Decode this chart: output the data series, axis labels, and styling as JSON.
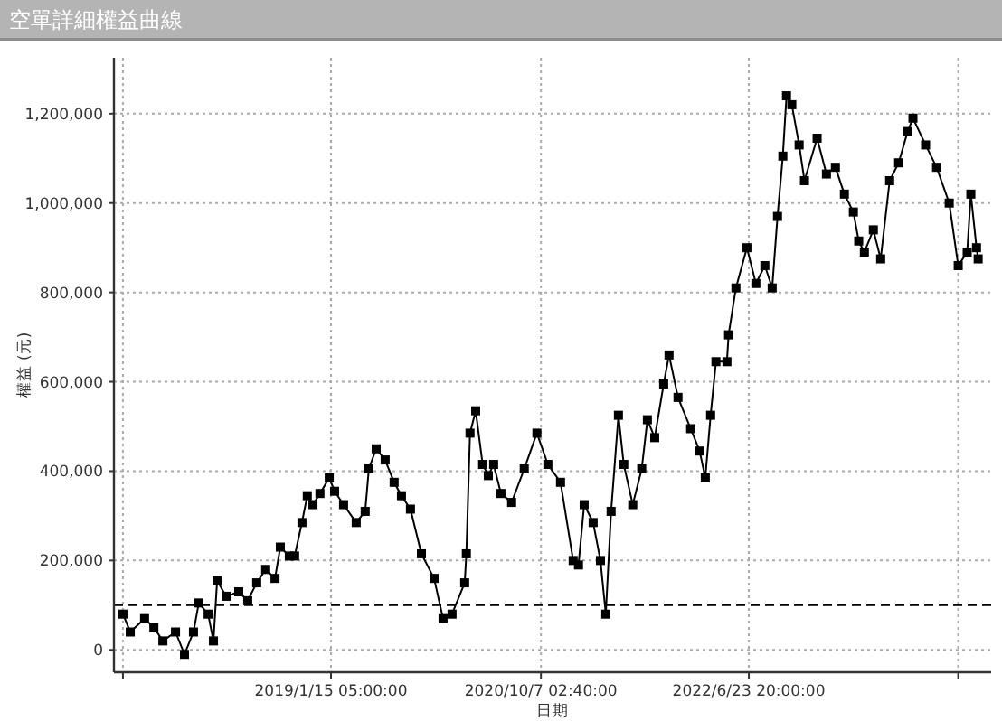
{
  "chart_data": {
    "type": "line",
    "title": "空單詳細權益曲線",
    "xlabel": "日期",
    "ylabel": "權益 (元)",
    "xlim": [
      "2017-04-03",
      "2024-06-21"
    ],
    "xticks": [
      {
        "value": "2017-04-30",
        "label": null
      },
      {
        "value": "2019-01-15T05:00",
        "label": "2019/1/15 05:00:00"
      },
      {
        "value": "2020-10-07T02:40",
        "label": "2020/10/7 02:40:00"
      },
      {
        "value": "2022-06-23T20:00",
        "label": "2022/6/23 20:00:00"
      },
      {
        "value": "2024-03-14",
        "label": null
      }
    ],
    "ylim": [
      -50000,
      1325000
    ],
    "yticks": [
      {
        "value": 0,
        "label": "0"
      },
      {
        "value": 200000,
        "label": "200,000"
      },
      {
        "value": 400000,
        "label": "400,000"
      },
      {
        "value": 600000,
        "label": "600,000"
      },
      {
        "value": 800000,
        "label": "800,000"
      },
      {
        "value": 1000000,
        "label": "1,000,000"
      },
      {
        "value": 1200000,
        "label": "1,200,000"
      }
    ],
    "grid": true,
    "marker": "square",
    "ref_lines": [
      {
        "axis": "y",
        "value": 100000,
        "color": "#000000",
        "line_style": "dashed"
      }
    ],
    "series": [
      {
        "color": "#000000",
        "x": [
          "2017-04-30",
          "2017-05-22",
          "2017-07-04",
          "2017-08-01",
          "2017-08-28",
          "2017-10-05",
          "2017-11-01",
          "2017-11-28",
          "2017-12-14",
          "2018-01-11",
          "2018-01-27",
          "2018-02-07",
          "2018-03-06",
          "2018-04-13",
          "2018-05-10",
          "2018-06-06",
          "2018-07-03",
          "2018-07-31",
          "2018-08-16",
          "2018-09-12",
          "2018-09-28",
          "2018-10-20",
          "2018-11-05",
          "2018-11-22",
          "2018-12-13",
          "2019-01-10",
          "2019-01-26",
          "2019-02-22",
          "2019-04-01",
          "2019-04-28",
          "2019-05-09",
          "2019-05-31",
          "2019-06-27",
          "2019-07-24",
          "2019-08-15",
          "2019-09-11",
          "2019-10-14",
          "2019-11-21",
          "2019-12-18",
          "2020-01-14",
          "2020-02-21",
          "2020-02-26",
          "2020-03-08",
          "2020-03-25",
          "2020-04-15",
          "2020-05-02",
          "2020-05-18",
          "2020-06-09",
          "2020-07-11",
          "2020-08-18",
          "2020-09-25",
          "2020-10-28",
          "2020-12-05",
          "2021-01-12",
          "2021-01-28",
          "2021-02-14",
          "2021-03-13",
          "2021-04-04",
          "2021-04-20",
          "2021-05-06",
          "2021-05-28",
          "2021-06-13",
          "2021-07-10",
          "2021-08-06",
          "2021-08-23",
          "2021-09-14",
          "2021-10-11",
          "2021-10-27",
          "2021-11-23",
          "2021-12-31",
          "2022-01-27",
          "2022-02-13",
          "2022-03-01",
          "2022-03-17",
          "2022-04-19",
          "2022-04-24",
          "2022-05-16",
          "2022-06-18",
          "2022-07-15",
          "2022-08-11",
          "2022-09-02",
          "2022-09-18",
          "2022-10-04",
          "2022-10-15",
          "2022-10-31",
          "2022-11-22",
          "2022-12-08",
          "2023-01-15",
          "2023-02-12",
          "2023-03-11",
          "2023-04-07",
          "2023-05-04",
          "2023-05-20",
          "2023-06-06",
          "2023-07-03",
          "2023-07-25",
          "2023-08-21",
          "2023-09-17",
          "2023-10-14",
          "2023-10-30",
          "2023-12-07",
          "2024-01-09",
          "2024-02-16",
          "2024-03-14",
          "2024-04-10",
          "2024-04-21",
          "2024-05-08",
          "2024-05-13"
        ],
        "values": [
          80000,
          40000,
          70000,
          50000,
          20000,
          40000,
          -10000,
          40000,
          105000,
          80000,
          20000,
          155000,
          120000,
          130000,
          110000,
          150000,
          180000,
          160000,
          230000,
          210000,
          210000,
          285000,
          345000,
          325000,
          350000,
          385000,
          355000,
          325000,
          285000,
          310000,
          405000,
          450000,
          425000,
          375000,
          345000,
          315000,
          215000,
          160000,
          70000,
          80000,
          150000,
          215000,
          485000,
          535000,
          415000,
          390000,
          415000,
          350000,
          330000,
          405000,
          485000,
          415000,
          375000,
          200000,
          190000,
          325000,
          285000,
          200000,
          80000,
          310000,
          525000,
          415000,
          325000,
          405000,
          515000,
          475000,
          595000,
          660000,
          565000,
          495000,
          445000,
          385000,
          525000,
          645000,
          645000,
          705000,
          810000,
          900000,
          820000,
          860000,
          810000,
          970000,
          1105000,
          1240000,
          1220000,
          1130000,
          1050000,
          1145000,
          1065000,
          1080000,
          1020000,
          980000,
          915000,
          890000,
          940000,
          875000,
          1050000,
          1090000,
          1160000,
          1190000,
          1130000,
          1080000,
          1000000,
          860000,
          890000,
          1020000,
          900000,
          875000
        ]
      }
    ]
  }
}
